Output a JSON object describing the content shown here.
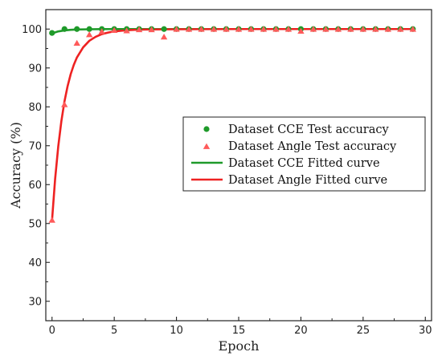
{
  "chart_data": {
    "type": "scatter",
    "title": "",
    "xlabel": "Epoch",
    "ylabel": "Accuracy  (%)",
    "xlim": [
      -0.5,
      30.5
    ],
    "ylim": [
      25,
      105
    ],
    "xticks": [
      0,
      5,
      10,
      15,
      20,
      25,
      30
    ],
    "yticks": [
      30,
      40,
      50,
      60,
      70,
      80,
      90,
      100
    ],
    "grid": false,
    "legend_position": "center-right",
    "series": [
      {
        "name": "Dataset CCE Test accuracy",
        "kind": "scatter",
        "marker": "circle",
        "color": "#1f9a2a",
        "x": [
          0,
          1,
          2,
          3,
          4,
          5,
          6,
          7,
          8,
          9,
          10,
          11,
          12,
          13,
          14,
          15,
          16,
          17,
          18,
          19,
          20,
          21,
          22,
          23,
          24,
          25,
          26,
          27,
          28,
          29
        ],
        "y": [
          99.0,
          100,
          100,
          100,
          100,
          100,
          100,
          100,
          100,
          100,
          100,
          100,
          100,
          100,
          100,
          100,
          100,
          100,
          100,
          100,
          100,
          100,
          100,
          100,
          100,
          100,
          100,
          100,
          100,
          100
        ]
      },
      {
        "name": "Dataset Angle Test accuracy",
        "kind": "scatter",
        "marker": "triangle",
        "color": "#ff5a5a",
        "x": [
          0,
          1,
          2,
          3,
          4,
          5,
          6,
          7,
          8,
          9,
          10,
          11,
          12,
          13,
          14,
          15,
          16,
          17,
          18,
          19,
          20,
          21,
          22,
          23,
          24,
          25,
          26,
          27,
          28,
          29
        ],
        "y": [
          50.8,
          80.5,
          96.3,
          98.5,
          99.3,
          99.6,
          99.5,
          99.8,
          99.8,
          97.9,
          99.9,
          99.9,
          99.9,
          99.9,
          99.9,
          99.9,
          99.9,
          99.9,
          99.9,
          99.9,
          99.4,
          99.9,
          99.9,
          99.9,
          99.9,
          99.9,
          99.9,
          99.9,
          99.9,
          99.9
        ]
      },
      {
        "name": "Dataset CCE Fitted curve",
        "kind": "line",
        "color": "#1f9a2a",
        "x": [
          0,
          0.5,
          1,
          1.5,
          2,
          3,
          4,
          5,
          6,
          8,
          10,
          15,
          20,
          25,
          29
        ],
        "y": [
          98.9,
          99.4,
          99.65,
          99.8,
          99.88,
          99.95,
          99.98,
          100,
          100,
          100,
          100,
          100,
          100,
          100,
          100
        ]
      },
      {
        "name": "Dataset Angle Fitted curve",
        "kind": "line",
        "color": "#ee2222",
        "x": [
          0,
          0.25,
          0.5,
          0.75,
          1,
          1.25,
          1.5,
          1.75,
          2,
          2.5,
          3,
          3.5,
          4,
          4.5,
          5,
          6,
          7,
          8,
          10,
          15,
          20,
          25,
          29
        ],
        "y": [
          50.8,
          61.5,
          69.8,
          76.3,
          81.4,
          85.3,
          88.4,
          90.8,
          92.7,
          95.3,
          97.0,
          98.0,
          98.7,
          99.1,
          99.4,
          99.7,
          99.85,
          99.9,
          99.95,
          100,
          100,
          100,
          100
        ]
      }
    ]
  }
}
